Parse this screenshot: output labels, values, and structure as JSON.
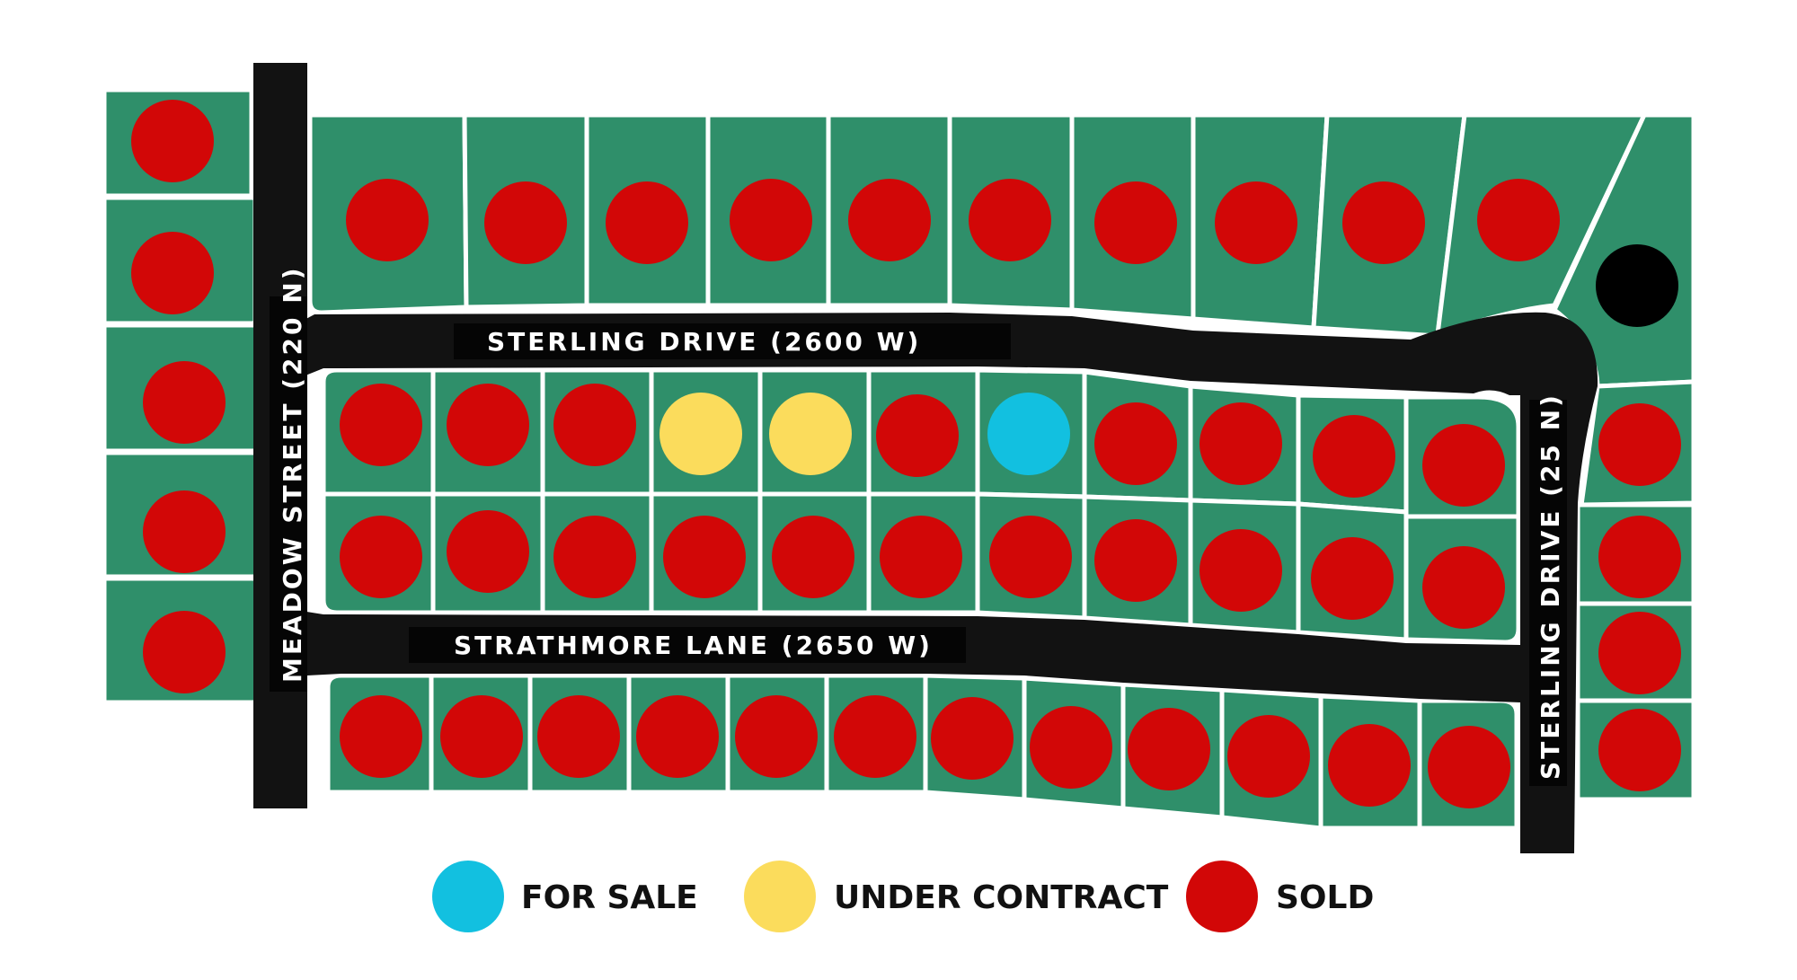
{
  "colors": {
    "lot_fill": "#2f8f6a",
    "road": "#121212",
    "lot_line": "#ffffff",
    "for_sale": "#12c0e0",
    "under_contract": "#fbdc5c",
    "sold": "#d20707",
    "special": "#000000"
  },
  "streets": {
    "meadow": "MEADOW STREET (220 N)",
    "sterling_top": "STERLING DRIVE (2600 W)",
    "strathmore": "STRATHMORE LANE (2650 W)",
    "sterling_right": "STERLING DRIVE (25 N)"
  },
  "legend": {
    "for_sale": "FOR SALE",
    "under_contract": "UNDER CONTRACT",
    "sold": "SOLD"
  },
  "lots": {
    "west_column": [
      "sold",
      "sold",
      "sold",
      "sold",
      "sold"
    ],
    "north_row": [
      "sold",
      "sold",
      "sold",
      "sold",
      "sold",
      "sold",
      "sold",
      "sold",
      "sold",
      "sold",
      "special"
    ],
    "block_upper": [
      "sold",
      "sold",
      "sold",
      "under_contract",
      "under_contract",
      "sold",
      "for_sale",
      "sold",
      "sold",
      "sold",
      "sold"
    ],
    "block_lower": [
      "sold",
      "sold",
      "sold",
      "sold",
      "sold",
      "sold",
      "sold",
      "sold",
      "sold",
      "sold",
      "sold"
    ],
    "south_row": [
      "sold",
      "sold",
      "sold",
      "sold",
      "sold",
      "sold",
      "sold",
      "sold",
      "sold",
      "sold",
      "sold",
      "sold"
    ],
    "east_column": [
      "sold",
      "sold",
      "sold",
      "sold"
    ]
  }
}
